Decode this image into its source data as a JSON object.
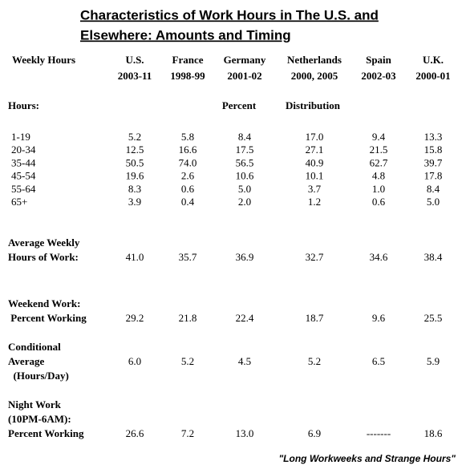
{
  "title": [
    "Characteristics of Work Hours in The U.S. and",
    "Elsewhere: Amounts and Timing"
  ],
  "header": {
    "label": "Weekly Hours",
    "columns": [
      [
        "U.S.",
        "2003-11"
      ],
      [
        "France",
        "1998-99"
      ],
      [
        "Germany",
        "2001-02"
      ],
      [
        "Netherlands",
        "2000, 2005"
      ],
      [
        "Spain",
        "2002-03"
      ],
      [
        "U.K.",
        "2000-01"
      ]
    ]
  },
  "section": {
    "label": "Hours:",
    "note": [
      "Percent",
      "Distribution"
    ]
  },
  "rows": [
    {
      "label": "1-19",
      "values": [
        "5.2",
        "5.8",
        "8.4",
        "17.0",
        "9.4",
        "13.3"
      ]
    },
    {
      "label": "20-34",
      "values": [
        "12.5",
        "16.6",
        "17.5",
        "27.1",
        "21.5",
        "15.8"
      ]
    },
    {
      "label": "35-44",
      "values": [
        "50.5",
        "74.0",
        "56.5",
        "40.9",
        "62.7",
        "39.7"
      ]
    },
    {
      "label": "45-54",
      "values": [
        "19.6",
        "2.6",
        "10.6",
        "10.1",
        "4.8",
        "17.8"
      ]
    },
    {
      "label": "55-64",
      "values": [
        "8.3",
        "0.6",
        "5.0",
        "3.7",
        "1.0",
        "8.4"
      ]
    },
    {
      "label": "65+",
      "values": [
        "3.9",
        "0.4",
        "2.0",
        "1.2",
        "0.6",
        "5.0"
      ]
    }
  ],
  "blocks": [
    {
      "label": [
        "Average Weekly",
        "Hours of Work:"
      ],
      "values": [
        "41.0",
        "35.7",
        "36.9",
        "32.7",
        "34.6",
        "38.4"
      ]
    },
    {
      "label": [
        "Weekend Work:",
        " Percent Working"
      ],
      "values": [
        "29.2",
        "21.8",
        "22.4",
        "18.7",
        "9.6",
        "25.5"
      ]
    },
    {
      "label": [
        "Conditional",
        "Average",
        "  (Hours/Day)"
      ],
      "values": [
        "6.0",
        "5.2",
        "4.5",
        "5.2",
        "6.5",
        "5.9"
      ]
    },
    {
      "label": [
        "Night Work",
        "(10PM-6AM):",
        "Percent Working"
      ],
      "values": [
        "26.6",
        "7.2",
        "13.0",
        "6.9",
        "-------",
        "18.6"
      ]
    }
  ],
  "source": "\"Long Workweeks and Strange Hours\""
}
